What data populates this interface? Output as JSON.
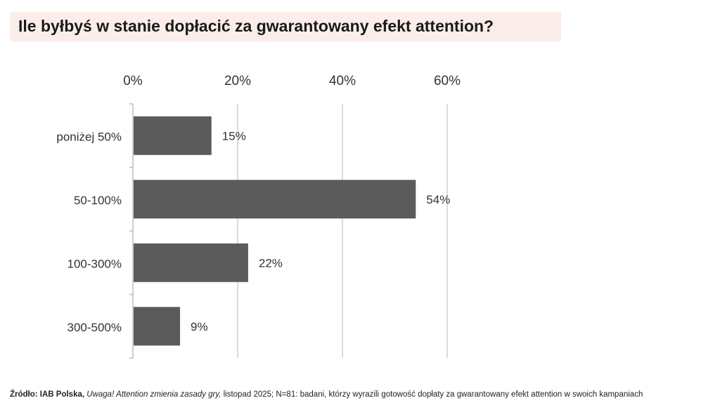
{
  "page_title": "Ile byłbyś w stanie dopłacić za gwarantowany efekt attention?",
  "source": {
    "label": "Źródło: IAB Polska,",
    "publication": "Uwaga! Attention zmienia zasady gry,",
    "details": "listopad 2025; N=81: badani, którzy wyrazili gotowość dopłaty za gwarantowany efekt attention w swoich kampaniach"
  },
  "colors": {
    "bar": "#5b5b5b",
    "grid": "#d0d0d0",
    "title_band": "#fbeeea"
  },
  "chart_data": {
    "type": "bar",
    "orientation": "horizontal",
    "title": "Ile byłbyś w stanie dopłacić za gwarantowany efekt attention?",
    "categories": [
      "poniżej 50%",
      "50-100%",
      "100-300%",
      "300-500%"
    ],
    "values": [
      15,
      54,
      22,
      9
    ],
    "data_labels": [
      "15%",
      "54%",
      "22%",
      "9%"
    ],
    "xlim": [
      0,
      60
    ],
    "x_ticks": [
      0,
      20,
      40,
      60
    ],
    "x_tick_labels": [
      "0%",
      "20%",
      "40%",
      "60%"
    ],
    "xaxis_position": "top",
    "grid": true,
    "unit": "%"
  }
}
